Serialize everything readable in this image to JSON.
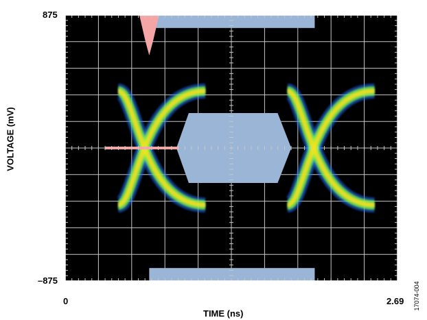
{
  "chart_data": {
    "type": "eye-diagram",
    "title": "",
    "xlabel": "TIME (ns)",
    "ylabel": "VOLTAGE (mV)",
    "x_ticks": [
      "0",
      "2.69"
    ],
    "y_ticks": [
      "875",
      "–875"
    ],
    "xlim": [
      0,
      2.69
    ],
    "ylim": [
      -875,
      875
    ],
    "grid": true,
    "levels_mV": {
      "high": 375,
      "low": -375
    },
    "crossings_ns": [
      0.65,
      2.02
    ],
    "mask": {
      "top_region_mV": [
        790,
        875
      ],
      "bottom_region_mV": [
        -875,
        -790
      ],
      "eye_center_mV": [
        -230,
        230
      ]
    },
    "figure_id": "17074-004",
    "colors": {
      "background": "#000000",
      "grid": "#c8c8c8",
      "trace_hot": "#ff6a1a",
      "trace_warm": "#f5e11e",
      "trace_mid": "#7dff4a",
      "trace_cool": "#1a6dff",
      "mask": "#9ab5d6",
      "violation": "#f4a6a6"
    }
  }
}
